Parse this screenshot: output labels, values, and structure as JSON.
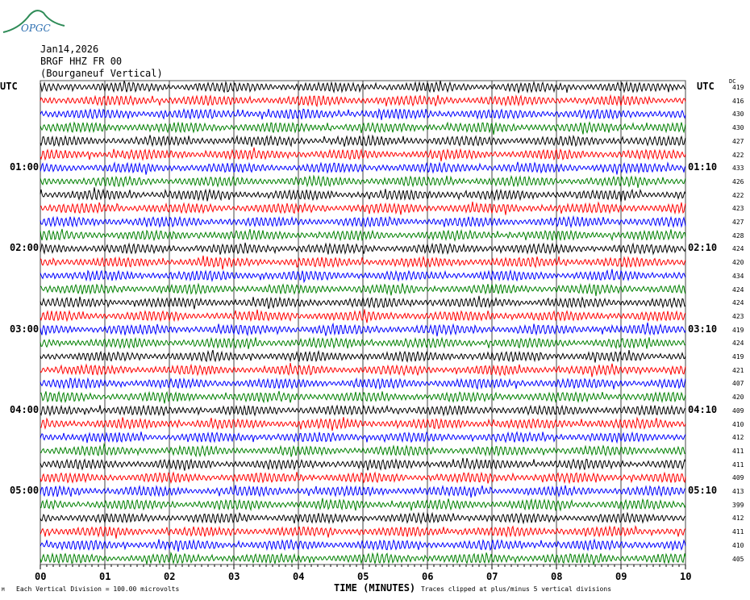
{
  "logo": {
    "text": "OPGC",
    "color": "#2e8b57"
  },
  "header": {
    "date": "Jan14,2026",
    "station": "BRGF HHZ FR 00",
    "location": "(Bourganeuf Vertical)"
  },
  "left_axis": {
    "title": "UTC",
    "labels": [
      "01:00",
      "02:00",
      "03:00",
      "04:00",
      "05:00"
    ]
  },
  "right_axis": {
    "title": "UTC",
    "labels": [
      "01:10",
      "02:10",
      "03:10",
      "04:10",
      "05:10"
    ],
    "dc_title": "DC"
  },
  "footer": {
    "scale": "Each Vertical Division =  100.00 microvolts",
    "xlabel": "TIME (MINUTES)",
    "clip_note": "Traces clipped at plus/minus 5 vertical divisions",
    "corner": "M"
  },
  "chart_data": {
    "type": "line",
    "title": "BRGF HHZ FR 00 (Bourganeuf Vertical) Jan14,2026",
    "xlabel": "TIME (MINUTES)",
    "ylabel": "UTC",
    "x_ticks": [
      "00",
      "01",
      "02",
      "03",
      "04",
      "05",
      "06",
      "07",
      "08",
      "09",
      "10"
    ],
    "xlim": [
      0,
      10
    ],
    "trace_minutes": 10,
    "trace_count": 36,
    "colors": [
      "#000000",
      "#ff0000",
      "#0000ff",
      "#008000"
    ],
    "dc_offsets": [
      419,
      416,
      430,
      430,
      427,
      422,
      433,
      426,
      422,
      423,
      427,
      428,
      424,
      420,
      434,
      424,
      424,
      423,
      419,
      424,
      419,
      421,
      407,
      420,
      409,
      410,
      412,
      411,
      411,
      409,
      413,
      399,
      412,
      411,
      410,
      405
    ]
  }
}
